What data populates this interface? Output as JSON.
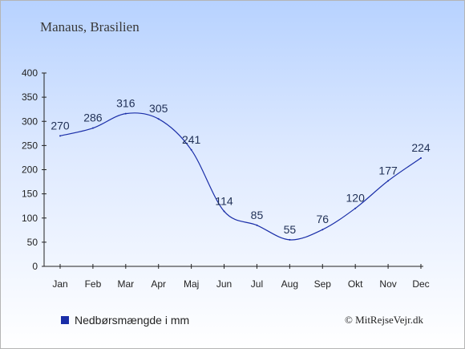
{
  "chart_data": {
    "type": "line",
    "title": "Manaus, Brasilien",
    "categories": [
      "Jan",
      "Feb",
      "Mar",
      "Apr",
      "Maj",
      "Jun",
      "Jul",
      "Aug",
      "Sep",
      "Okt",
      "Nov",
      "Dec"
    ],
    "series": [
      {
        "name": "Nedbørsmængde i mm",
        "values": [
          270,
          286,
          316,
          305,
          241,
          114,
          85,
          55,
          76,
          120,
          177,
          224
        ],
        "color": "#1a2ea8"
      }
    ],
    "yticks": [
      0,
      50,
      100,
      150,
      200,
      250,
      300,
      350,
      400
    ],
    "ylim": [
      0,
      400
    ],
    "grid": false,
    "legend_position": "bottom-left"
  },
  "credit": "© MitRejseVejr.dk"
}
